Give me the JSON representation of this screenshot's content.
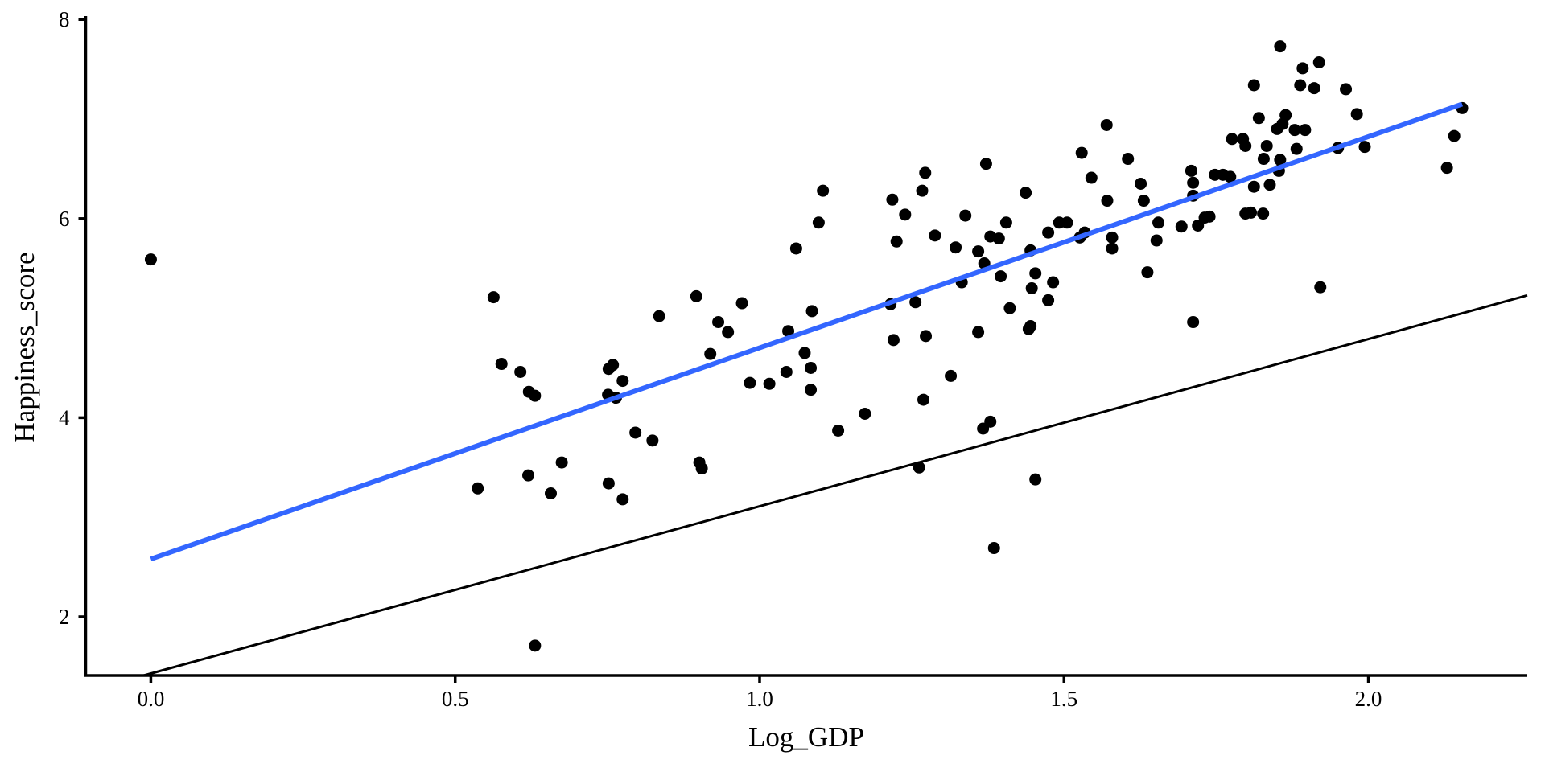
{
  "chart_data": {
    "type": "scatter",
    "title": "",
    "xlabel": "Log_GDP",
    "ylabel": "Happiness_score",
    "xlim": [
      -0.107,
      2.261
    ],
    "ylim": [
      1.41,
      8.01
    ],
    "x_ticks": [
      0.0,
      0.5,
      1.0,
      1.5,
      2.0
    ],
    "x_tick_labels": [
      "0.0",
      "0.5",
      "1.0",
      "1.5",
      "2.0"
    ],
    "y_ticks": [
      2,
      4,
      6,
      8
    ],
    "y_tick_labels": [
      "2",
      "4",
      "6",
      "8"
    ],
    "grid": false,
    "colors": {
      "points": "#000000",
      "fit_line": "#3366FF",
      "reference_line": "#000000"
    },
    "fit_line": {
      "x": [
        0.0,
        2.154
      ],
      "y": [
        2.58,
        7.15
      ]
    },
    "reference_line": {
      "intercept": 1.43,
      "slope": 1.68
    },
    "points": [
      [
        0.0,
        5.59
      ],
      [
        0.537,
        3.29
      ],
      [
        0.563,
        5.21
      ],
      [
        0.576,
        4.54
      ],
      [
        0.607,
        4.46
      ],
      [
        0.621,
        4.26
      ],
      [
        0.631,
        4.22
      ],
      [
        0.62,
        3.42
      ],
      [
        0.631,
        1.71
      ],
      [
        0.657,
        3.24
      ],
      [
        0.675,
        3.55
      ],
      [
        0.752,
        4.49
      ],
      [
        0.759,
        4.53
      ],
      [
        0.751,
        4.23
      ],
      [
        0.764,
        4.2
      ],
      [
        0.775,
        4.37
      ],
      [
        0.752,
        3.34
      ],
      [
        0.775,
        3.18
      ],
      [
        0.796,
        3.85
      ],
      [
        0.824,
        3.77
      ],
      [
        0.835,
        5.02
      ],
      [
        0.896,
        5.22
      ],
      [
        0.901,
        3.55
      ],
      [
        0.905,
        3.49
      ],
      [
        0.919,
        4.64
      ],
      [
        0.932,
        4.96
      ],
      [
        0.948,
        4.86
      ],
      [
        0.971,
        5.15
      ],
      [
        0.984,
        4.35
      ],
      [
        1.016,
        4.34
      ],
      [
        1.044,
        4.46
      ],
      [
        1.047,
        4.87
      ],
      [
        1.06,
        5.7
      ],
      [
        1.074,
        4.65
      ],
      [
        1.084,
        4.5
      ],
      [
        1.084,
        4.28
      ],
      [
        1.086,
        5.07
      ],
      [
        1.097,
        5.96
      ],
      [
        1.104,
        6.28
      ],
      [
        1.129,
        3.87
      ],
      [
        1.173,
        4.04
      ],
      [
        1.218,
        6.19
      ],
      [
        1.225,
        5.77
      ],
      [
        1.215,
        5.14
      ],
      [
        1.22,
        4.78
      ],
      [
        1.239,
        6.04
      ],
      [
        1.256,
        5.16
      ],
      [
        1.262,
        3.5
      ],
      [
        1.267,
        6.28
      ],
      [
        1.272,
        6.46
      ],
      [
        1.269,
        4.18
      ],
      [
        1.273,
        4.82
      ],
      [
        1.288,
        5.83
      ],
      [
        1.314,
        4.42
      ],
      [
        1.322,
        5.71
      ],
      [
        1.332,
        5.36
      ],
      [
        1.338,
        6.03
      ],
      [
        1.359,
        5.67
      ],
      [
        1.359,
        4.86
      ],
      [
        1.369,
        5.55
      ],
      [
        1.372,
        6.55
      ],
      [
        1.379,
        5.82
      ],
      [
        1.367,
        3.89
      ],
      [
        1.379,
        3.96
      ],
      [
        1.385,
        2.69
      ],
      [
        1.393,
        5.8
      ],
      [
        1.396,
        5.42
      ],
      [
        1.405,
        5.96
      ],
      [
        1.411,
        5.1
      ],
      [
        1.437,
        6.26
      ],
      [
        1.442,
        4.89
      ],
      [
        1.445,
        4.92
      ],
      [
        1.445,
        5.68
      ],
      [
        1.447,
        5.3
      ],
      [
        1.453,
        5.45
      ],
      [
        1.453,
        3.38
      ],
      [
        1.474,
        5.18
      ],
      [
        1.474,
        5.86
      ],
      [
        1.482,
        5.36
      ],
      [
        1.492,
        5.96
      ],
      [
        1.505,
        5.96
      ],
      [
        1.526,
        5.81
      ],
      [
        1.534,
        5.86
      ],
      [
        1.529,
        6.66
      ],
      [
        1.545,
        6.41
      ],
      [
        1.57,
        6.94
      ],
      [
        1.571,
        6.18
      ],
      [
        1.579,
        5.81
      ],
      [
        1.579,
        5.7
      ],
      [
        1.605,
        6.6
      ],
      [
        1.626,
        6.35
      ],
      [
        1.631,
        6.18
      ],
      [
        1.637,
        5.46
      ],
      [
        1.652,
        5.78
      ],
      [
        1.655,
        5.96
      ],
      [
        1.693,
        5.92
      ],
      [
        1.709,
        6.48
      ],
      [
        1.712,
        6.36
      ],
      [
        1.712,
        6.23
      ],
      [
        1.712,
        4.96
      ],
      [
        1.72,
        5.93
      ],
      [
        1.731,
        6.01
      ],
      [
        1.739,
        6.02
      ],
      [
        1.748,
        6.44
      ],
      [
        1.761,
        6.44
      ],
      [
        1.773,
        6.42
      ],
      [
        1.776,
        6.8
      ],
      [
        1.794,
        6.8
      ],
      [
        1.798,
        6.73
      ],
      [
        1.798,
        6.05
      ],
      [
        1.807,
        6.06
      ],
      [
        1.812,
        7.34
      ],
      [
        1.812,
        6.32
      ],
      [
        1.82,
        7.01
      ],
      [
        1.827,
        6.05
      ],
      [
        1.828,
        6.6
      ],
      [
        1.833,
        6.73
      ],
      [
        1.838,
        6.34
      ],
      [
        1.85,
        6.9
      ],
      [
        1.853,
        6.48
      ],
      [
        1.855,
        6.59
      ],
      [
        1.855,
        7.73
      ],
      [
        1.859,
        6.95
      ],
      [
        1.864,
        7.04
      ],
      [
        1.879,
        6.89
      ],
      [
        1.882,
        6.7
      ],
      [
        1.888,
        7.34
      ],
      [
        1.892,
        7.51
      ],
      [
        1.896,
        6.89
      ],
      [
        1.911,
        7.31
      ],
      [
        1.919,
        7.57
      ],
      [
        1.921,
        5.31
      ],
      [
        1.95,
        6.71
      ],
      [
        1.963,
        7.3
      ],
      [
        1.981,
        7.05
      ],
      [
        1.994,
        6.72
      ],
      [
        2.129,
        6.51
      ],
      [
        2.141,
        6.83
      ],
      [
        2.154,
        7.11
      ]
    ]
  }
}
